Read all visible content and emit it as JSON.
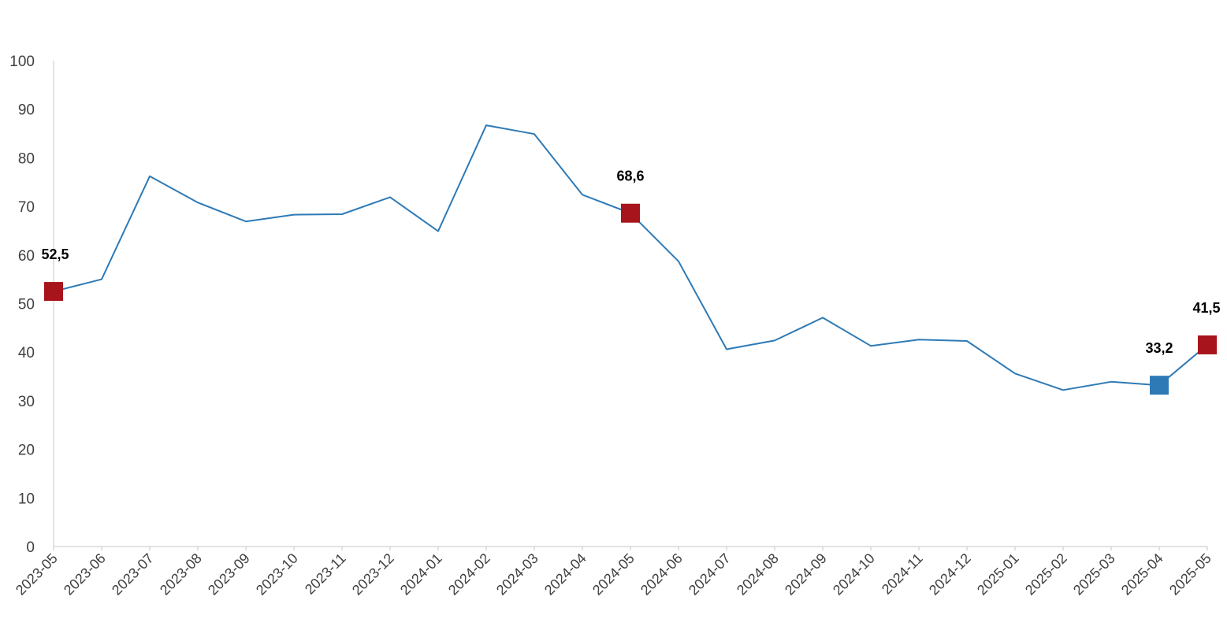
{
  "chart_data": {
    "type": "line",
    "title": "",
    "xlabel": "",
    "ylabel": "",
    "ylim": [
      0,
      100
    ],
    "yticks": [
      0,
      10,
      20,
      30,
      40,
      50,
      60,
      70,
      80,
      90,
      100
    ],
    "grid": false,
    "categories": [
      "2023-05",
      "2023-06",
      "2023-07",
      "2023-08",
      "2023-09",
      "2023-10",
      "2023-11",
      "2023-12",
      "2024-01",
      "2024-02",
      "2024-03",
      "2024-04",
      "2024-05",
      "2024-06",
      "2024-07",
      "2024-08",
      "2024-09",
      "2024-10",
      "2024-11",
      "2024-12",
      "2025-01",
      "2025-02",
      "2025-03",
      "2025-04",
      "2025-05"
    ],
    "series": [
      {
        "color": "#2e7ab6",
        "values": [
          52.5,
          55.0,
          76.2,
          70.8,
          66.9,
          68.3,
          68.4,
          71.9,
          64.9,
          86.7,
          84.9,
          72.4,
          68.6,
          58.7,
          40.6,
          42.4,
          47.1,
          41.3,
          42.6,
          42.3,
          35.6,
          32.2,
          33.9,
          33.2,
          41.5
        ]
      }
    ],
    "highlighted_points": [
      {
        "index": 0,
        "label": "52,5",
        "color": "#a8141b",
        "label_position": "above"
      },
      {
        "index": 12,
        "label": "68,6",
        "color": "#a8141b",
        "label_position": "above"
      },
      {
        "index": 23,
        "label": "33,2",
        "color": "#2e7ab6",
        "label_position": "above"
      },
      {
        "index": 24,
        "label": "41,5",
        "color": "#a8141b",
        "label_position": "above"
      }
    ]
  }
}
